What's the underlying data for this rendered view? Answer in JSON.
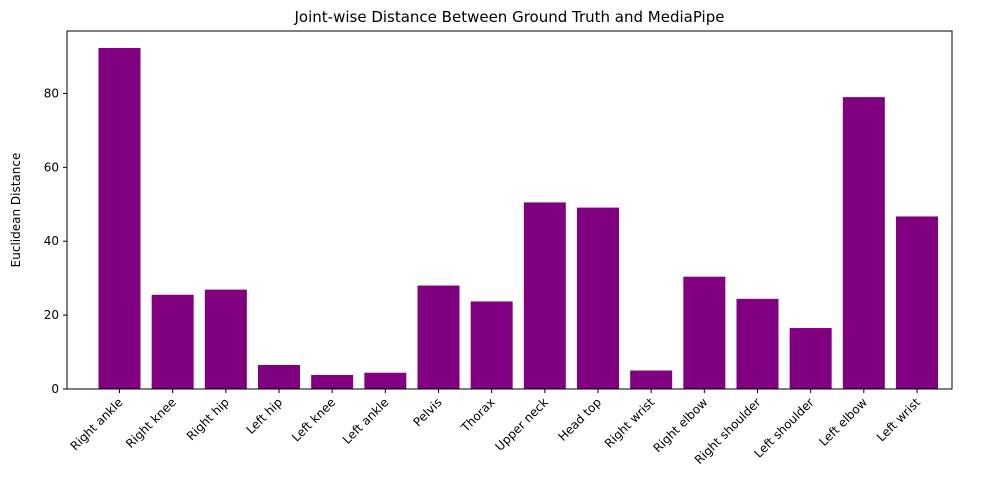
{
  "chart_data": {
    "type": "bar",
    "title": "Joint-wise Distance Between Ground Truth and MediaPipe",
    "xlabel": "",
    "ylabel": "Euclidean Distance",
    "categories": [
      "Right ankle",
      "Right knee",
      "Right hip",
      "Left hip",
      "Left knee",
      "Left ankle",
      "Pelvis",
      "Thorax",
      "Upper neck",
      "Head top",
      "Right wrist",
      "Right elbow",
      "Right shoulder",
      "Left shoulder",
      "Left elbow",
      "Left wrist"
    ],
    "values": [
      92.3,
      25.5,
      26.9,
      6.5,
      3.8,
      4.4,
      28.0,
      23.7,
      50.5,
      49.1,
      5.0,
      30.4,
      24.4,
      16.5,
      79.0,
      46.7
    ],
    "ylim": [
      0,
      96.9
    ],
    "yticks": [
      0,
      20,
      40,
      60,
      80
    ],
    "bar_color": "#800080",
    "grid": false,
    "legend": false
  }
}
